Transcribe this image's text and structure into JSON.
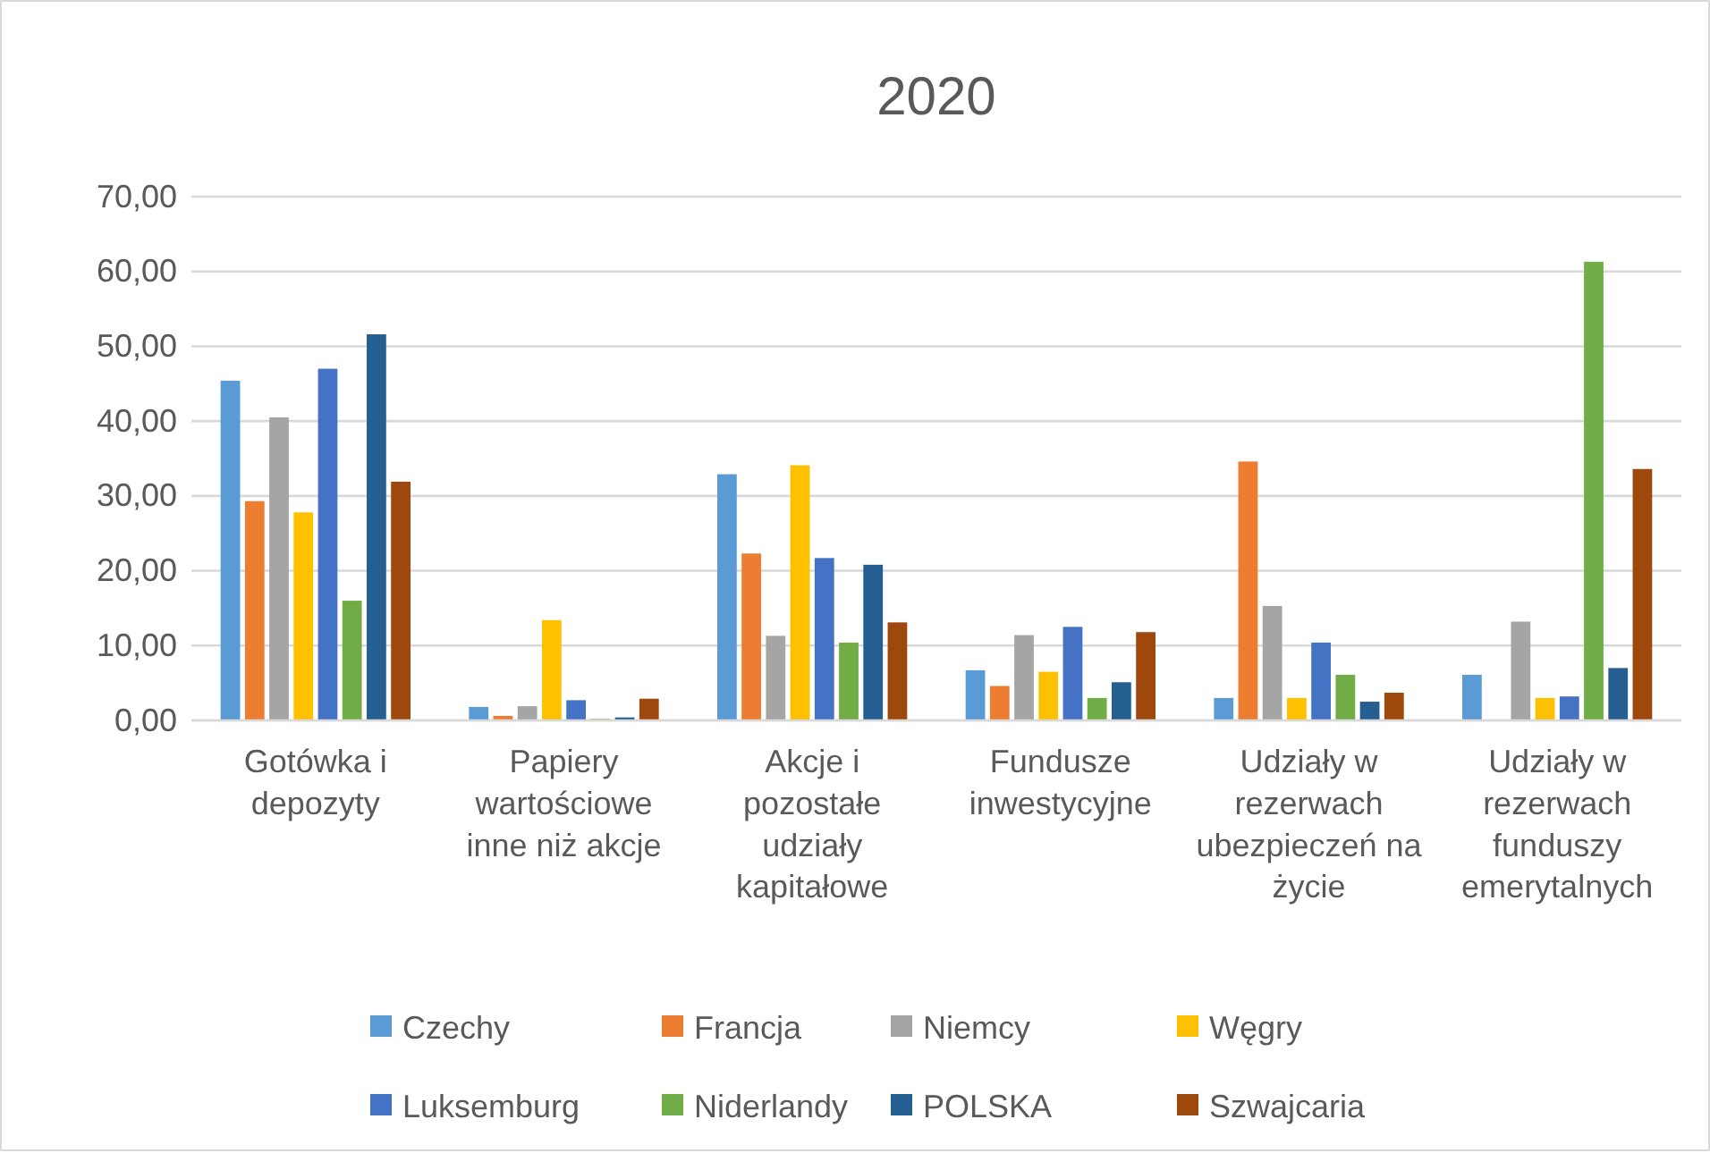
{
  "chart_data": {
    "type": "bar",
    "title": "2020",
    "categories": [
      "Gotówka i depozyty",
      "Papiery wartościowe inne niż akcje",
      "Akcje i pozostałe udziały kapitałowe",
      "Fundusze inwestycyjne",
      "Udziały w rezerwach ubezpieczeń na życie",
      "Udziały w rezerwach funduszy emerytalnych"
    ],
    "series": [
      {
        "name": "Czechy",
        "color": "#5b9bd5",
        "values": [
          45.4,
          1.8,
          32.9,
          6.7,
          3.0,
          6.1
        ]
      },
      {
        "name": "Francja",
        "color": "#ed7d31",
        "values": [
          29.3,
          0.6,
          22.3,
          4.6,
          34.6,
          0
        ]
      },
      {
        "name": "Niemcy",
        "color": "#a5a5a5",
        "values": [
          40.5,
          1.9,
          11.3,
          11.4,
          15.3,
          13.2
        ]
      },
      {
        "name": "Węgry",
        "color": "#ffc000",
        "values": [
          27.8,
          13.4,
          34.1,
          6.5,
          3.0,
          3.0
        ]
      },
      {
        "name": "Luksemburg",
        "color": "#4472c4",
        "values": [
          47.0,
          2.7,
          21.7,
          12.5,
          10.4,
          3.2
        ]
      },
      {
        "name": "Niderlandy",
        "color": "#70ad47",
        "values": [
          16.0,
          0.2,
          10.4,
          3.0,
          6.1,
          61.3
        ]
      },
      {
        "name": "POLSKA",
        "color": "#255e91",
        "values": [
          51.6,
          0.4,
          20.8,
          5.1,
          2.5,
          7.0
        ]
      },
      {
        "name": "Szwajcaria",
        "color": "#9e480e",
        "values": [
          31.9,
          2.9,
          13.1,
          11.8,
          3.7,
          33.6
        ]
      }
    ],
    "ylim": [
      0,
      70
    ],
    "yticks": [
      {
        "value": 0,
        "label": "0,00"
      },
      {
        "value": 10,
        "label": "10,00"
      },
      {
        "value": 20,
        "label": "20,00"
      },
      {
        "value": 30,
        "label": "30,00"
      },
      {
        "value": 40,
        "label": "40,00"
      },
      {
        "value": 50,
        "label": "50,00"
      },
      {
        "value": 60,
        "label": "60,00"
      },
      {
        "value": 70,
        "label": "70,00"
      }
    ],
    "grid": "y",
    "legend": "bottom"
  }
}
